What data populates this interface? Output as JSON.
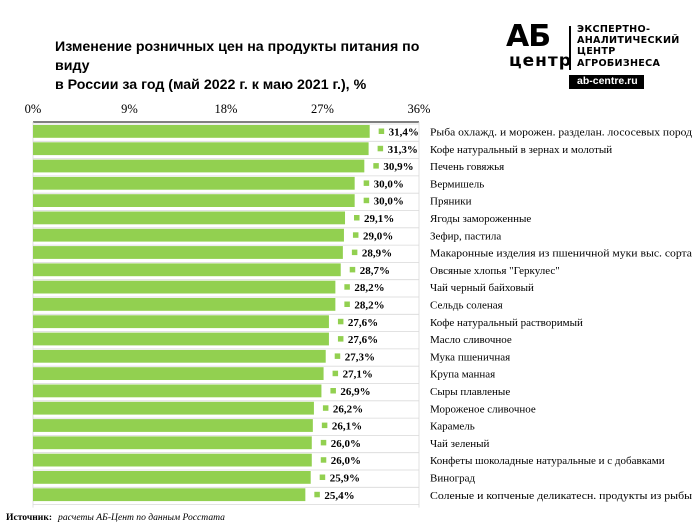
{
  "header": {
    "title_line1": "Изменение розничных  цен на продукты  питания по виду",
    "title_line2": "в России за год (май 2022 г. к маю 2021 г.), %"
  },
  "logo": {
    "mark": "АБ",
    "mark2": "центр",
    "lines": [
      "ЭКСПЕРТНО-",
      "АНАЛИТИЧЕСКИЙ",
      "ЦЕНТР",
      "АГРОБИЗНЕСА"
    ],
    "url": "ab-centre.ru"
  },
  "source": {
    "label": "Источник:",
    "text": "расчеты АБ-Цент по данным Росстата"
  },
  "colors": {
    "bar": "#92d050",
    "grid": "#d9d9d9",
    "axis": "#000000"
  },
  "chart_data": {
    "type": "bar",
    "orientation": "horizontal",
    "title": "Изменение розничных цен на продукты питания по виду в России за год (май 2022 г. к маю 2021 г.), %",
    "xlim": [
      0,
      36
    ],
    "xticks": [
      0,
      9,
      18,
      27,
      36
    ],
    "tick_labels": [
      "0%",
      "9%",
      "18%",
      "27%",
      "36%"
    ],
    "categories": [
      "Рыба охлажд. и морожен. разделан. лососевых пород",
      "Кофе натуральный в зернах и молотый",
      "Печень говяжья",
      "Вермишель",
      "Пряники",
      "Ягоды замороженные",
      "Зефир, пастила",
      "Макаронные изделия из пшеничной муки выс. сорта",
      "Овсяные хлопья \"Геркулес\"",
      "Чай черный байховый",
      "Сельдь соленая",
      "Кофе натуральный растворимый",
      "Масло сливочное",
      "Мука пшеничная",
      "Крупа манная",
      "Сыры плавленые",
      "Мороженое сливочное",
      "Карамель",
      "Чай зеленый",
      "Конфеты шоколадные натуральные и с добавками",
      "Виноград",
      "Соленые и копченые деликатесн. продукты из рыбы"
    ],
    "values": [
      31.4,
      31.3,
      30.9,
      30.0,
      30.0,
      29.1,
      29.0,
      28.9,
      28.7,
      28.2,
      28.2,
      27.6,
      27.6,
      27.3,
      27.1,
      26.9,
      26.2,
      26.1,
      26.0,
      26.0,
      25.9,
      25.4
    ],
    "value_labels": [
      "31,4%",
      "31,3%",
      "30,9%",
      "30,0%",
      "30,0%",
      "29,1%",
      "29,0%",
      "28,9%",
      "28,7%",
      "28,2%",
      "28,2%",
      "27,6%",
      "27,6%",
      "27,3%",
      "27,1%",
      "26,9%",
      "26,2%",
      "26,1%",
      "26,0%",
      "26,0%",
      "25,9%",
      "25,4%"
    ]
  }
}
